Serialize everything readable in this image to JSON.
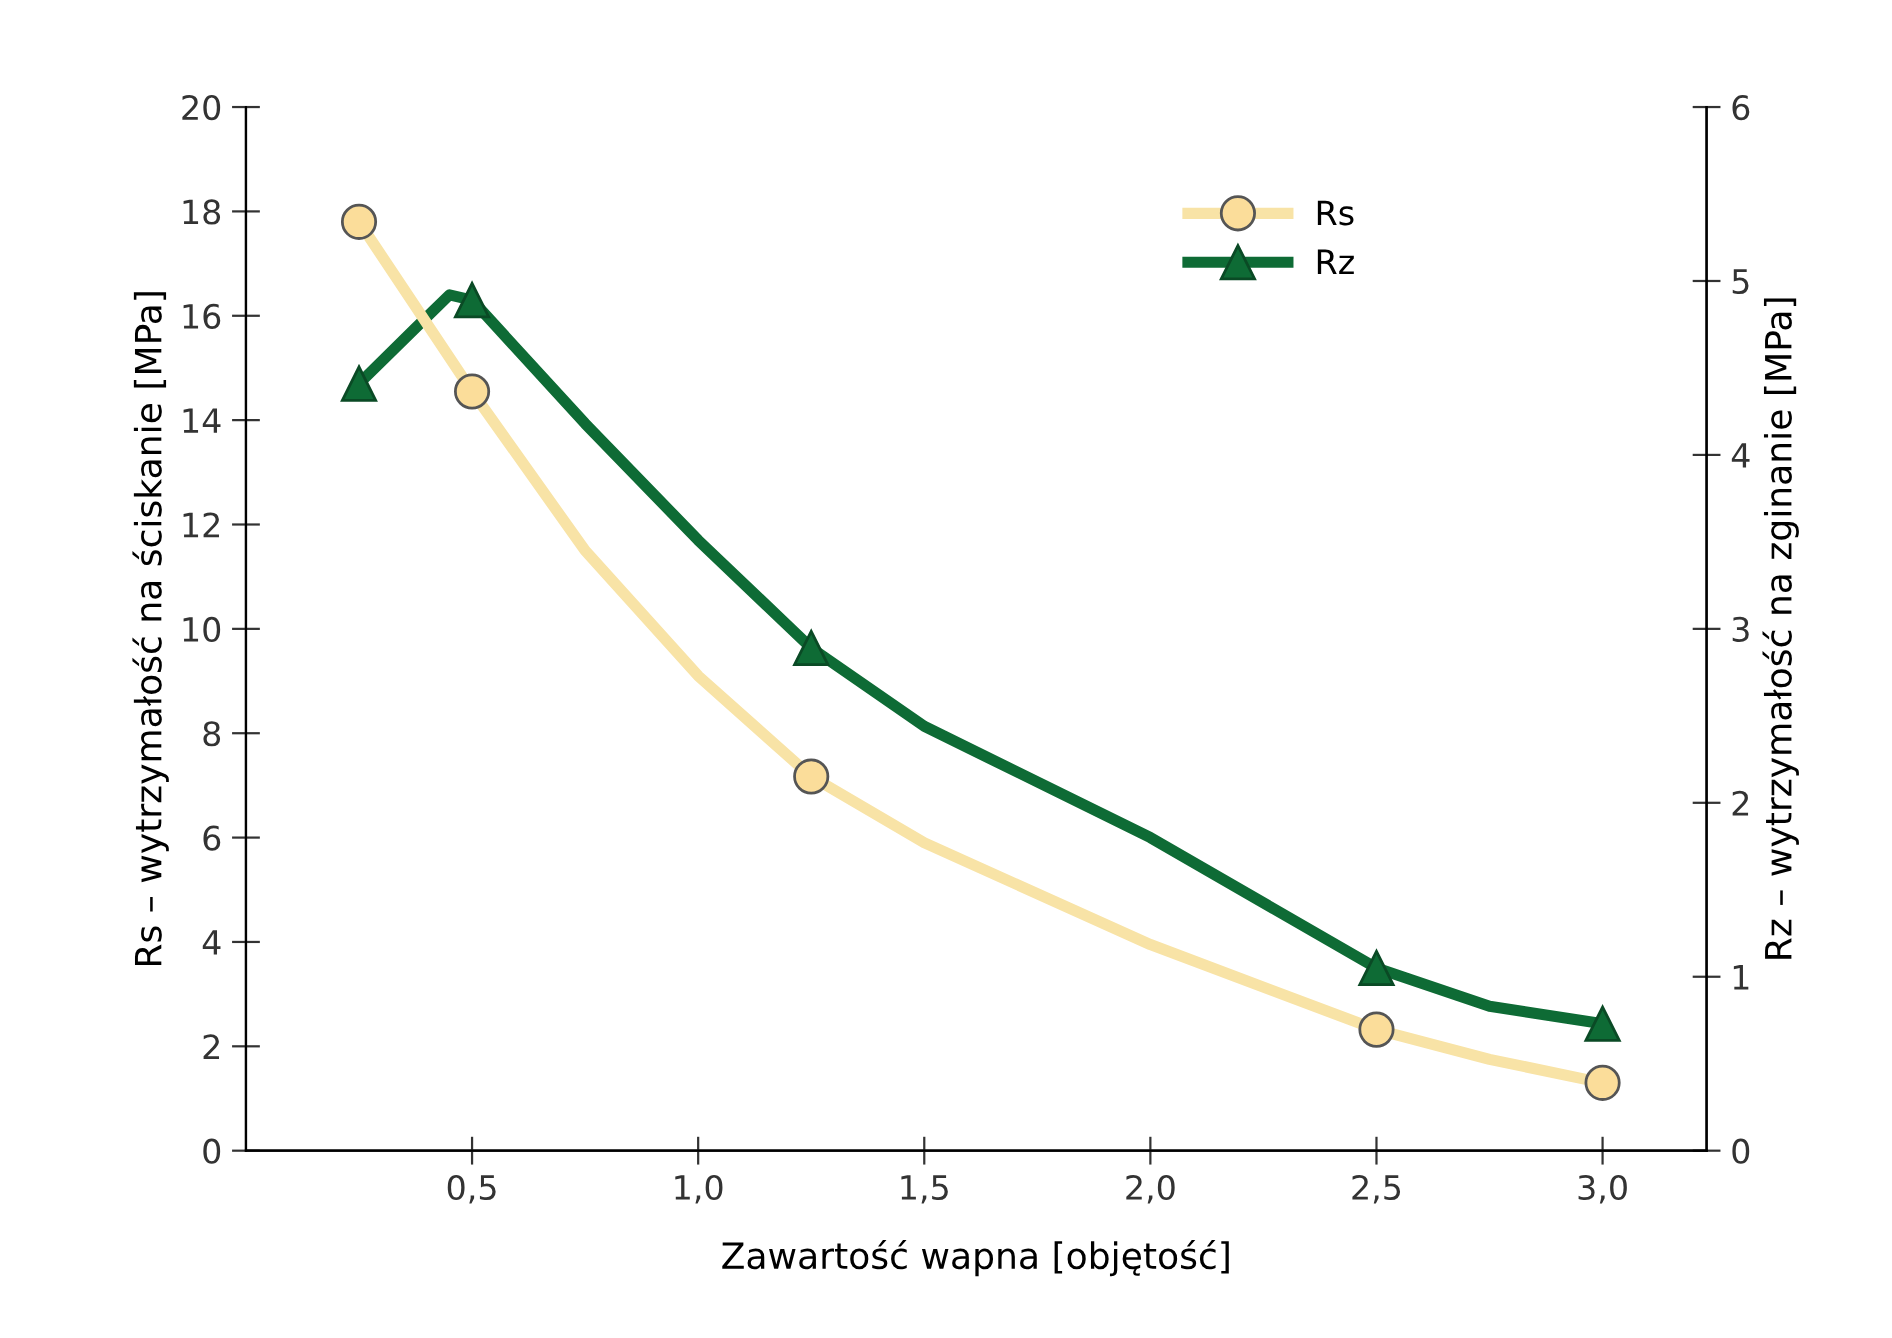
{
  "chart_data": {
    "type": "line",
    "xlabel": "Zawartość wapna [objętość]",
    "ylabel": "Rs – wytrzymałość na ściskanie [MPa]",
    "y2label": "Rz – wytrzymałość na zginanie [MPa]",
    "xlim": [
      0,
      3.23
    ],
    "xticks": [
      {
        "value": 0.5,
        "label": "0,5"
      },
      {
        "value": 1.0,
        "label": "1,0"
      },
      {
        "value": 1.5,
        "label": "1,5"
      },
      {
        "value": 2.0,
        "label": "2,0"
      },
      {
        "value": 2.5,
        "label": "2,5"
      },
      {
        "value": 3.0,
        "label": "3,0"
      }
    ],
    "ylim": [
      0,
      20
    ],
    "yticks": [
      0,
      2,
      4,
      6,
      8,
      10,
      12,
      14,
      16,
      18,
      20
    ],
    "y2lim": [
      0,
      6
    ],
    "y2ticks": [
      0,
      1,
      2,
      3,
      4,
      5,
      6
    ],
    "grid": false,
    "legend": "top right",
    "series": [
      {
        "name": "Rs",
        "color": "#f8e3a6",
        "x": [
          0.25,
          0.5,
          0.75,
          1.0,
          1.25,
          1.5,
          2.0,
          2.5,
          2.75,
          3.0
        ],
        "values": [
          17.8,
          14.55,
          11.5,
          9.1,
          7.17,
          5.9,
          3.95,
          2.32,
          1.75,
          1.3
        ]
      },
      {
        "type": "scatter",
        "color": "#fbdd9a",
        "marker": "circle",
        "x": [
          0.25,
          0.5,
          1.25,
          2.5,
          3.0
        ],
        "values": [
          17.8,
          14.55,
          7.17,
          2.32,
          1.3
        ]
      },
      {
        "name": "Rz",
        "color": "#0e6b35",
        "axis": "y2",
        "x": [
          0.25,
          0.375,
          0.45,
          0.5,
          0.75,
          1.0,
          1.25,
          1.5,
          2.0,
          2.5,
          2.75,
          3.0
        ],
        "values": [
          4.41,
          4.73,
          4.92,
          4.89,
          4.18,
          3.51,
          2.89,
          2.44,
          1.8,
          1.05,
          0.83,
          0.73
        ]
      },
      {
        "type": "scatter",
        "color": "#0e6b35",
        "marker": "triangle",
        "axis": "y2",
        "x": [
          0.25,
          0.5,
          1.25,
          2.5,
          3.0
        ],
        "values": [
          4.41,
          4.89,
          2.89,
          1.05,
          0.73
        ]
      }
    ]
  }
}
